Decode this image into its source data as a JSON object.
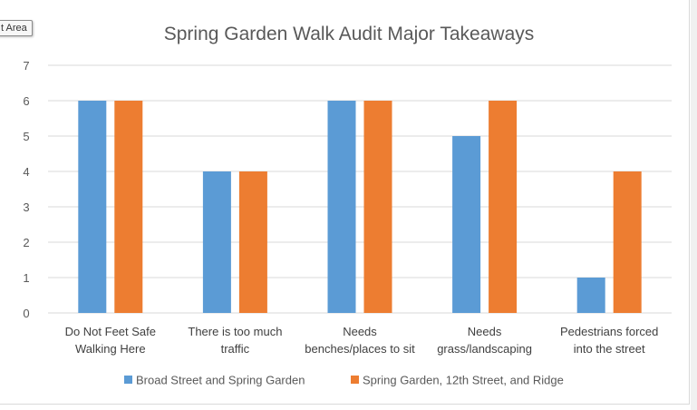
{
  "tooltip": {
    "text": "t Area"
  },
  "chart_data": {
    "type": "bar",
    "title": "Spring Garden Walk Audit Major Takeaways",
    "xlabel": "",
    "ylabel": "",
    "ylim": [
      0,
      7
    ],
    "yticks": [
      0,
      1,
      2,
      3,
      4,
      5,
      6,
      7
    ],
    "grid": true,
    "legend_position": "bottom",
    "categories": [
      [
        "Do Not Feet Safe",
        "Walking Here"
      ],
      [
        "There is too much",
        "traffic"
      ],
      [
        "Needs",
        "benches/places to sit"
      ],
      [
        "Needs",
        "grass/landscaping"
      ],
      [
        "Pedestrians forced",
        "into the street"
      ]
    ],
    "series": [
      {
        "name": "Broad Street and Spring Garden",
        "color": "#5b9bd5",
        "values": [
          6,
          4,
          6,
          5,
          1
        ]
      },
      {
        "name": "Spring Garden, 12th Street, and Ridge",
        "color": "#ed7d31",
        "values": [
          6,
          4,
          6,
          6,
          4
        ]
      }
    ]
  }
}
